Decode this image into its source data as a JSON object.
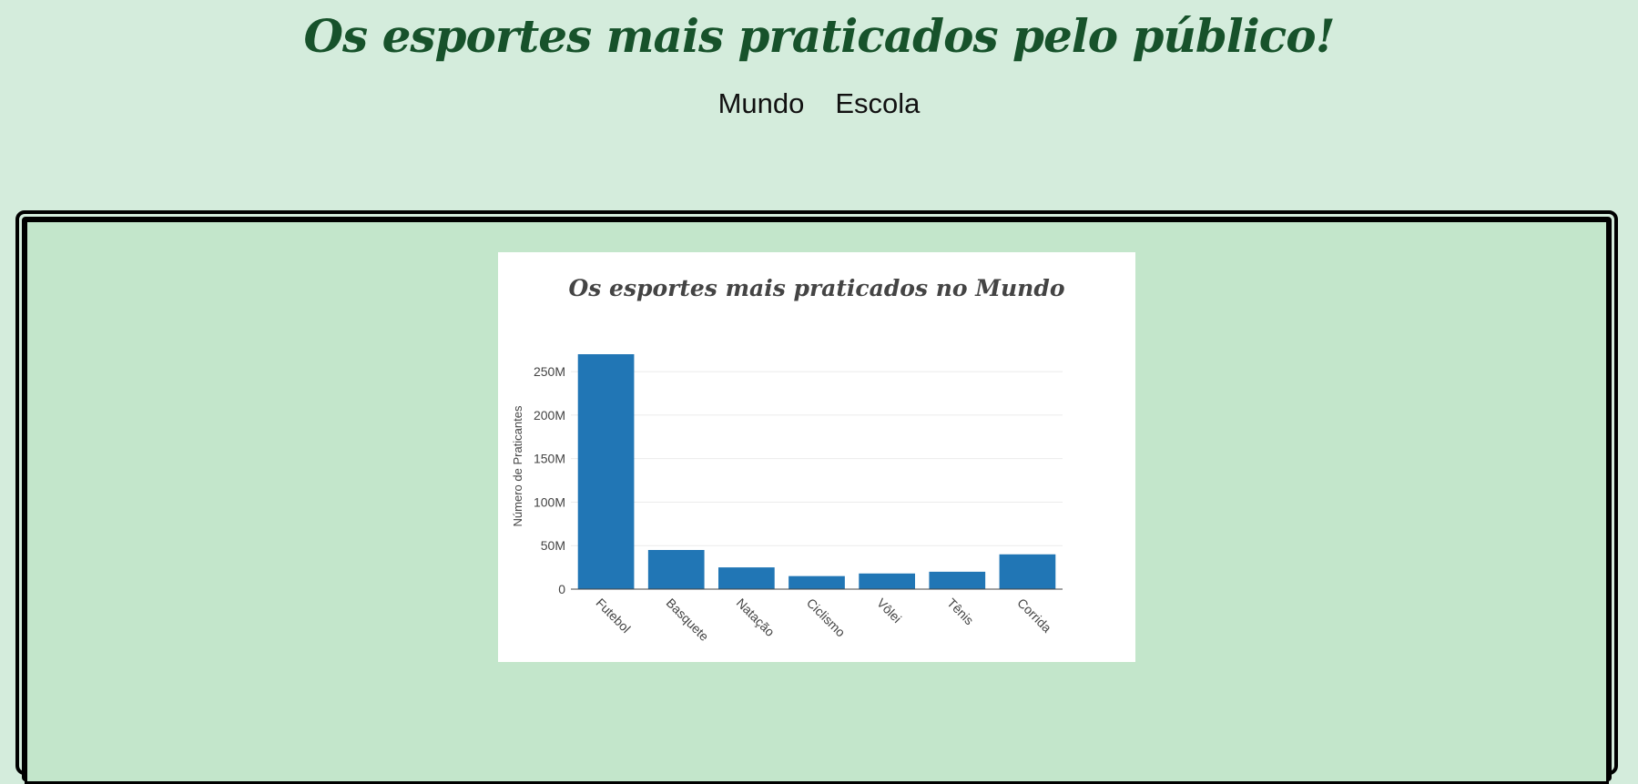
{
  "header": {
    "title": "Os esportes mais praticados pelo público!"
  },
  "nav": {
    "items": [
      {
        "label": "Mundo"
      },
      {
        "label": "Escola"
      }
    ]
  },
  "colors": {
    "background": "#d4ecdc",
    "panel": "#c3e6cb",
    "title": "#17522b",
    "bar": "#2176b5"
  },
  "chart_data": {
    "type": "bar",
    "title": "Os esportes mais praticados no Mundo",
    "xlabel": "",
    "ylabel": "Número de Praticantes",
    "categories": [
      "Futebol",
      "Basquete",
      "Natação",
      "Ciclismo",
      "Vôlei",
      "Tênis",
      "Corrida"
    ],
    "values": [
      270000000,
      45000000,
      25000000,
      15000000,
      18000000,
      20000000,
      40000000
    ],
    "ylim": [
      0,
      270000000
    ],
    "yticks": [
      {
        "value": 0,
        "label": "0"
      },
      {
        "value": 50000000,
        "label": "50M"
      },
      {
        "value": 100000000,
        "label": "100M"
      },
      {
        "value": 150000000,
        "label": "150M"
      },
      {
        "value": 200000000,
        "label": "200M"
      },
      {
        "value": 250000000,
        "label": "250M"
      }
    ],
    "grid": true,
    "bar_color": "#2176b5"
  }
}
